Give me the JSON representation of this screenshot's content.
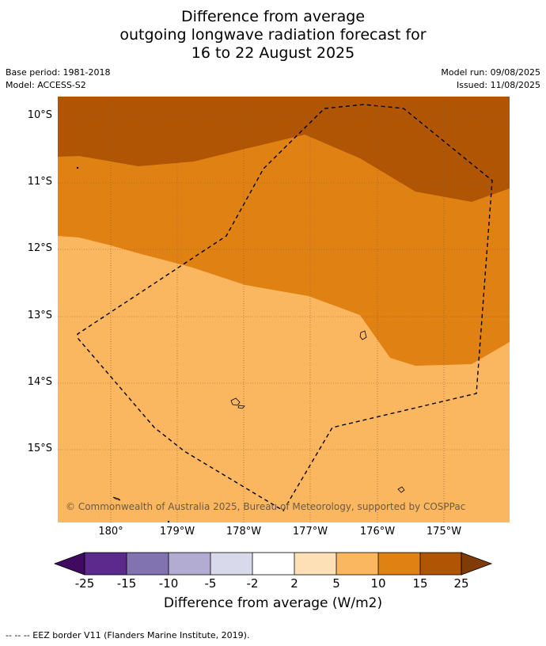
{
  "title": {
    "line1": "Difference from average",
    "line2": "outgoing longwave radiation forecast for",
    "line3": "16 to 22 August 2025"
  },
  "meta": {
    "base_period": "Base period: 1981-2018",
    "model": "Model: ACCESS-S2",
    "model_run": "Model run: 09/08/2025",
    "issued": "Issued: 11/08/2025"
  },
  "map": {
    "lat_labels": [
      "10°S",
      "11°S",
      "12°S",
      "13°S",
      "14°S",
      "15°S"
    ],
    "lon_labels": [
      "180°",
      "179°W",
      "178°W",
      "177°W",
      "176°W",
      "175°W"
    ],
    "copyright": "© Commonwealth of Australia 2025, Bureau of Meteorology, supported by COSPPac",
    "colors": {
      "band_15_25": "#b05504",
      "band_10_15": "#e08114",
      "band_5_10": "#fbb760",
      "grid": "#8a5a2a",
      "eez_line": "#000000"
    }
  },
  "colorbar": {
    "tick_labels": [
      "-25",
      "-15",
      "-10",
      "-5",
      "-2",
      "2",
      "5",
      "10",
      "15",
      "25"
    ],
    "colors": [
      "#3f0a5f",
      "#5b2a8c",
      "#8172b0",
      "#b2abd2",
      "#d8daeb",
      "#ffffff",
      "#fee0b6",
      "#fbb760",
      "#e08114",
      "#b05504",
      "#7f3b08"
    ],
    "title": "Difference from average (W/m2)"
  },
  "footer": "--  --  -- EEZ border V11 (Flanders Marine Institute, 2019)."
}
